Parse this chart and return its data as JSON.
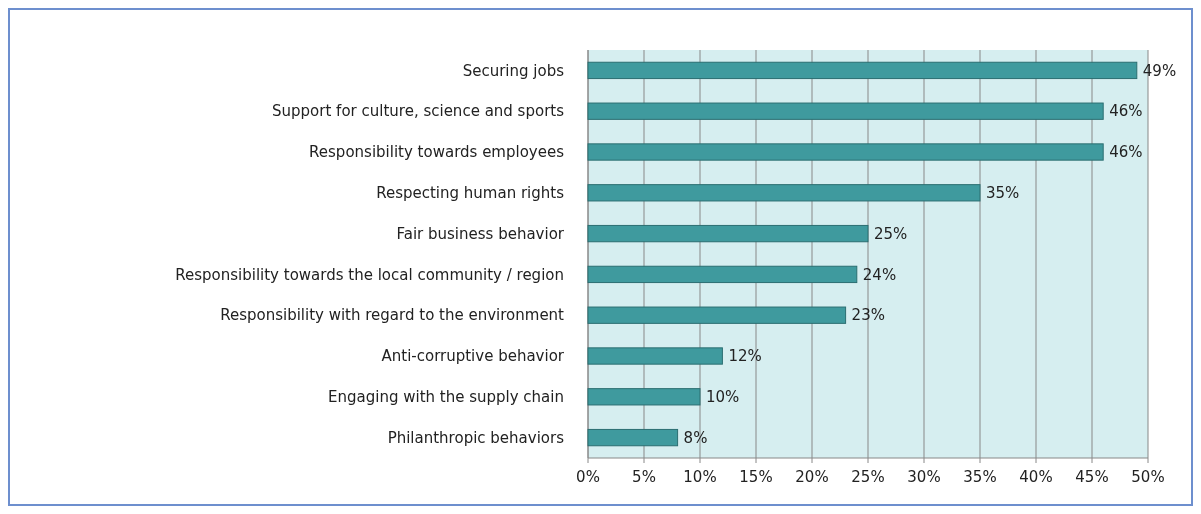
{
  "chart_data": {
    "type": "bar",
    "orientation": "horizontal",
    "categories": [
      "Securing jobs",
      "Support for culture, science and sports",
      "Responsibility towards employees",
      "Respecting human rights",
      "Fair business behavior",
      "Responsibility towards the local community / region",
      "Responsibility with regard to the environment",
      "Anti-corruptive behavior",
      "Engaging with the supply chain",
      "Philanthropic behaviors"
    ],
    "values": [
      49,
      46,
      46,
      35,
      25,
      24,
      23,
      12,
      10,
      8
    ],
    "value_labels": [
      "49%",
      "46%",
      "46%",
      "35%",
      "25%",
      "24%",
      "23%",
      "12%",
      "10%",
      "8%"
    ],
    "color": "#3f9a9e",
    "xlim": [
      0,
      50
    ],
    "xticks": [
      {
        "value": 0,
        "label": "0%"
      },
      {
        "value": 5,
        "label": "5%"
      },
      {
        "value": 10,
        "label": "10%"
      },
      {
        "value": 15,
        "label": "15%"
      },
      {
        "value": 20,
        "label": "20%"
      },
      {
        "value": 25,
        "label": "25%"
      },
      {
        "value": 30,
        "label": "30%"
      },
      {
        "value": 35,
        "label": "35%"
      },
      {
        "value": 40,
        "label": "40%"
      },
      {
        "value": 45,
        "label": "45%"
      },
      {
        "value": 50,
        "label": "50%"
      }
    ],
    "grid": "x"
  }
}
